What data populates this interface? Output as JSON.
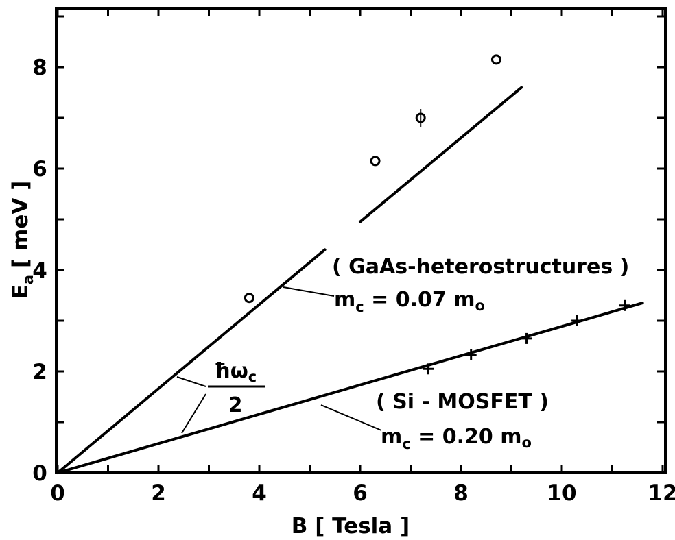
{
  "chart_data": {
    "type": "scatter",
    "title": "",
    "xlabel": "B [ Tesla ]",
    "ylabel": "E",
    "ylabel_subscript": "a",
    "ylabel_unit": "[ meV ]",
    "xlim": [
      0,
      12
    ],
    "ylim": [
      0,
      9
    ],
    "x_ticks": [
      "0",
      "2",
      "4",
      "6",
      "8",
      "10",
      "12"
    ],
    "y_ticks": [
      "0",
      "2",
      "4",
      "6",
      "8"
    ],
    "grid": false,
    "series": [
      {
        "marker": "circle",
        "points": [
          {
            "x": 3.8,
            "y": 3.45
          },
          {
            "x": 6.3,
            "y": 6.15
          },
          {
            "x": 7.2,
            "y": 7.0
          },
          {
            "x": 8.7,
            "y": 8.15
          }
        ]
      },
      {
        "marker": "plus",
        "points": [
          {
            "x": 7.35,
            "y": 2.05
          },
          {
            "x": 8.2,
            "y": 2.33
          },
          {
            "x": 9.3,
            "y": 2.65
          },
          {
            "x": 10.3,
            "y": 3.0
          },
          {
            "x": 11.25,
            "y": 3.3
          }
        ]
      }
    ],
    "lines": [
      {
        "segments": [
          [
            [
              0,
              0
            ],
            [
              5.3,
              4.4
            ]
          ],
          [
            [
              6.0,
              4.95
            ],
            [
              9.2,
              7.6
            ]
          ]
        ]
      },
      {
        "segments": [
          [
            [
              0,
              0
            ],
            [
              11.6,
              3.35
            ]
          ]
        ]
      }
    ],
    "annotations": {
      "fraction_numerator": "ħω",
      "fraction_numerator_sub": "c",
      "fraction_denominator": "2",
      "gaas_title": "( GaAs-heterostructures )",
      "gaas_mass_prefix": "m",
      "gaas_mass_sub": "c",
      "gaas_mass_value": " = 0.07 m",
      "gaas_mass_end": "o",
      "si_title": "( Si - MOSFET )",
      "si_mass_prefix": "m",
      "si_mass_sub": "c",
      "si_mass_value": " = 0.20 m",
      "si_mass_end": "o"
    }
  }
}
